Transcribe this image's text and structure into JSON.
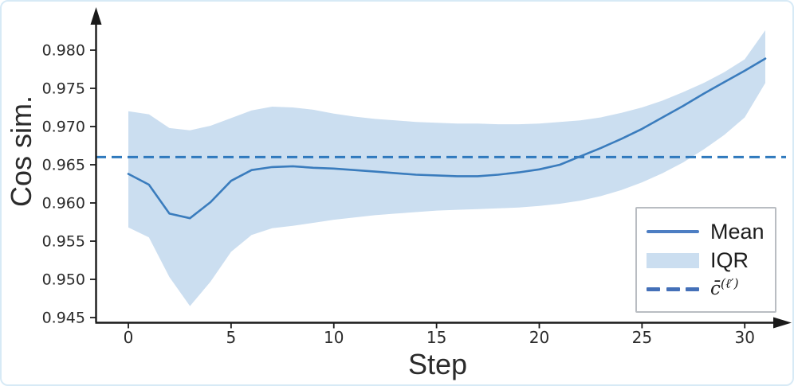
{
  "chart_data": {
    "type": "line",
    "title": "",
    "xlabel": "Step",
    "ylabel": "Cos sim.",
    "grid": false,
    "legend_position": "lower right",
    "xlim": [
      -1.6,
      32.2
    ],
    "ylim": [
      0.9444,
      0.9853
    ],
    "xticks": [
      0,
      5,
      10,
      15,
      20,
      25,
      30
    ],
    "ytick_labels": [
      "0.945",
      "0.950",
      "0.955",
      "0.960",
      "0.965",
      "0.970",
      "0.975",
      "0.980"
    ],
    "x": [
      0,
      1,
      2,
      3,
      4,
      5,
      6,
      7,
      8,
      9,
      10,
      11,
      12,
      13,
      14,
      15,
      16,
      17,
      18,
      19,
      20,
      21,
      22,
      23,
      24,
      25,
      26,
      27,
      28,
      29,
      30,
      31
    ],
    "series": [
      {
        "name": "Mean",
        "type": "line",
        "style": "solid",
        "color": "#3a7cbd",
        "values": [
          0.9638,
          0.9624,
          0.9586,
          0.958,
          0.9601,
          0.9629,
          0.9643,
          0.9647,
          0.9648,
          0.9646,
          0.9645,
          0.9643,
          0.9641,
          0.9639,
          0.9637,
          0.9636,
          0.9635,
          0.9635,
          0.9637,
          0.964,
          0.9644,
          0.965,
          0.9661,
          0.9672,
          0.9684,
          0.9697,
          0.9712,
          0.9727,
          0.9743,
          0.9758,
          0.9773,
          0.9789
        ]
      },
      {
        "name": "IQR",
        "type": "band",
        "color": "#cbdef0",
        "upper": [
          0.972,
          0.9716,
          0.9698,
          0.9695,
          0.9701,
          0.9711,
          0.9721,
          0.9726,
          0.9725,
          0.9722,
          0.9717,
          0.9713,
          0.971,
          0.9708,
          0.9706,
          0.9705,
          0.9704,
          0.9704,
          0.9703,
          0.9703,
          0.9704,
          0.9706,
          0.9708,
          0.9712,
          0.9718,
          0.9725,
          0.9734,
          0.9745,
          0.9757,
          0.9771,
          0.9788,
          0.9826
        ],
        "lower": [
          0.9568,
          0.9555,
          0.9503,
          0.9465,
          0.9497,
          0.9536,
          0.9558,
          0.9567,
          0.957,
          0.9574,
          0.9578,
          0.9581,
          0.9584,
          0.9586,
          0.9588,
          0.959,
          0.9591,
          0.9592,
          0.9593,
          0.9594,
          0.9596,
          0.9599,
          0.9603,
          0.9609,
          0.9617,
          0.9627,
          0.9639,
          0.9653,
          0.967,
          0.9689,
          0.9712,
          0.9757
        ]
      },
      {
        "name": "c̄^(ℓ′)",
        "name_base": "c̄",
        "name_sup": "(ℓ′)",
        "type": "hline",
        "style": "dashed",
        "color": "#2f79bd",
        "value": 0.966
      }
    ],
    "palette": {
      "line": "#3a7cbd",
      "band": "#cbdef0",
      "dashed": "#2f79bd",
      "axis": "#1a1a1a",
      "tick_text": "#2b2b2b",
      "legend_line": "#4d7ec3",
      "legend_dash": "#4470b8",
      "frame": "#d7eaf6"
    }
  }
}
